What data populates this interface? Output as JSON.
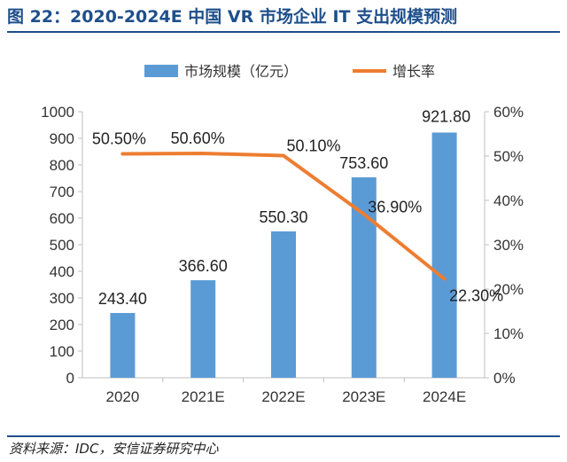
{
  "header": {
    "title": "图 22：2020-2024E 中国 VR 市场企业 IT 支出规模预测"
  },
  "footer": {
    "source": "资料来源：IDC，安信证券研究中心"
  },
  "chart_data": {
    "type": "bar",
    "categories": [
      "2020",
      "2021E",
      "2022E",
      "2023E",
      "2024E"
    ],
    "series": [
      {
        "name": "市场规模（亿元）",
        "type": "bar",
        "axis": "left",
        "values": [
          243.4,
          366.6,
          550.3,
          753.6,
          921.8
        ],
        "labels": [
          "243.40",
          "366.60",
          "550.30",
          "753.60",
          "921.80"
        ],
        "color": "#5b9bd5"
      },
      {
        "name": "增长率",
        "type": "line",
        "axis": "right",
        "values": [
          50.5,
          50.6,
          50.1,
          36.9,
          22.3
        ],
        "labels": [
          "50.50%",
          "50.60%",
          "50.10%",
          "36.90%",
          "22.30%"
        ],
        "color": "#ed7d31"
      }
    ],
    "y_left": {
      "min": 0,
      "max": 1000,
      "ticks": [
        "0",
        "100",
        "200",
        "300",
        "400",
        "500",
        "600",
        "700",
        "800",
        "900",
        "1000"
      ]
    },
    "y_right": {
      "min": 0,
      "max": 60,
      "ticks": [
        "0%",
        "10%",
        "20%",
        "30%",
        "40%",
        "50%",
        "60%"
      ]
    },
    "legend_position": "top",
    "grid": false
  }
}
